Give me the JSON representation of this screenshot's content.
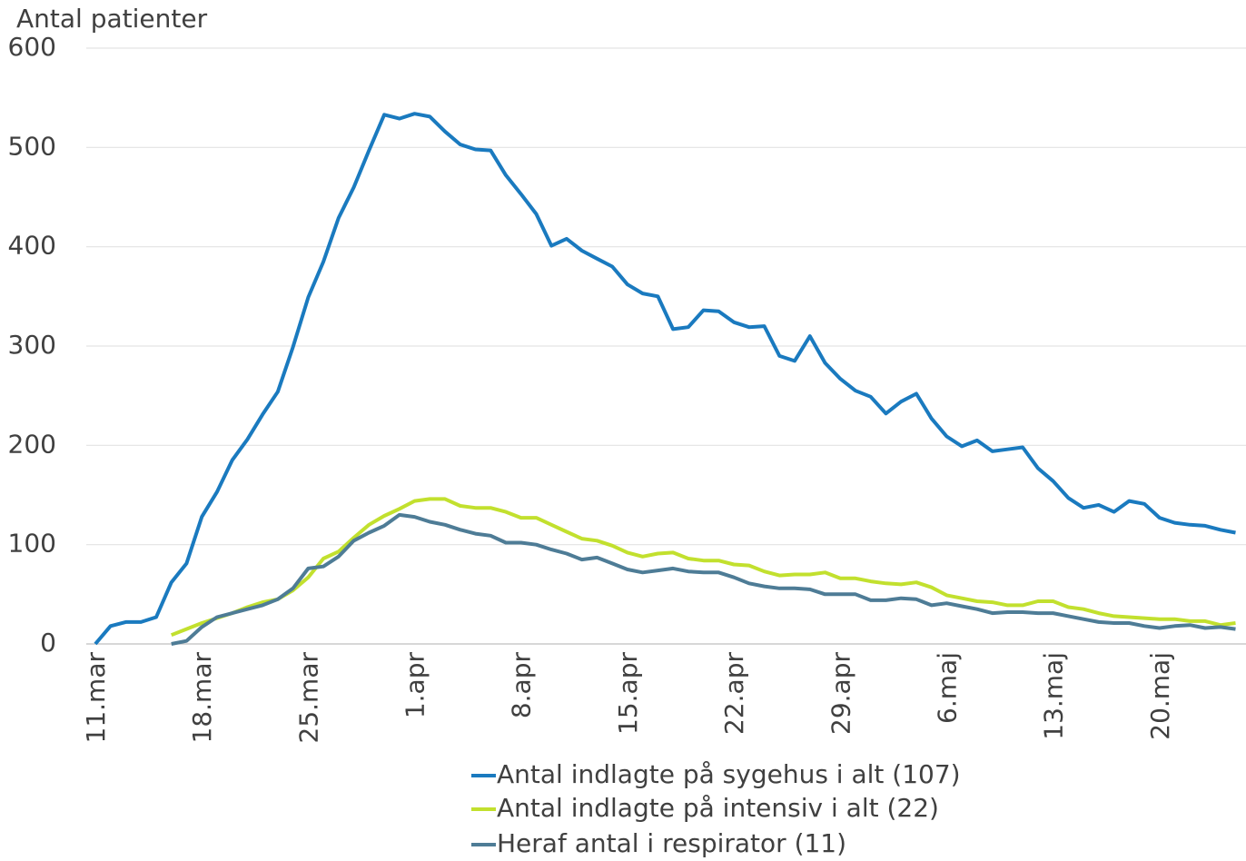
{
  "chart_data": {
    "type": "line",
    "y_label": "Antal patienter",
    "categories": [
      "11.mar",
      null,
      null,
      null,
      null,
      null,
      null,
      "18.mar",
      null,
      null,
      null,
      null,
      null,
      null,
      "25.mar",
      null,
      null,
      null,
      null,
      null,
      null,
      "1.apr",
      null,
      null,
      null,
      null,
      null,
      null,
      "8.apr",
      null,
      null,
      null,
      null,
      null,
      null,
      "15.apr",
      null,
      null,
      null,
      null,
      null,
      null,
      "22.apr",
      null,
      null,
      null,
      null,
      null,
      null,
      "29.apr",
      null,
      null,
      null,
      null,
      null,
      null,
      "6.maj",
      null,
      null,
      null,
      null,
      null,
      null,
      "13.maj",
      null,
      null,
      null,
      null,
      null,
      null,
      "20.maj",
      null,
      null,
      null,
      null,
      null
    ],
    "series": [
      {
        "name": "Antal indlagte på sygehus i alt (107)",
        "color": "#1a7abf",
        "values": [
          0,
          18,
          22,
          22,
          27,
          62,
          81,
          128,
          153,
          185,
          206,
          231,
          254,
          299,
          349,
          385,
          429,
          460,
          497,
          533,
          529,
          534,
          531,
          516,
          503,
          498,
          497,
          472,
          453,
          433,
          401,
          408,
          396,
          388,
          380,
          362,
          353,
          350,
          317,
          319,
          336,
          335,
          324,
          319,
          320,
          290,
          285,
          310,
          283,
          267,
          255,
          249,
          232,
          244,
          252,
          227,
          209,
          199,
          205,
          194,
          196,
          198,
          177,
          164,
          147,
          137,
          140,
          133,
          144,
          141,
          127,
          122,
          120,
          119,
          115,
          112
        ]
      },
      {
        "name": "Antal indlagte på intensiv i alt (22)",
        "color": "#c2e02e",
        "values": [
          null,
          null,
          null,
          null,
          null,
          9,
          15,
          21,
          26,
          31,
          37,
          42,
          45,
          54,
          67,
          86,
          93,
          107,
          120,
          129,
          136,
          144,
          146,
          146,
          139,
          137,
          137,
          133,
          127,
          127,
          120,
          113,
          106,
          104,
          99,
          92,
          88,
          91,
          92,
          86,
          84,
          84,
          80,
          79,
          73,
          69,
          70,
          70,
          72,
          66,
          66,
          63,
          61,
          60,
          62,
          57,
          49,
          46,
          43,
          42,
          39,
          39,
          43,
          43,
          37,
          35,
          31,
          28,
          27,
          26,
          25,
          25,
          23,
          23,
          19,
          21
        ]
      },
      {
        "name": "Heraf antal i respirator (11)",
        "color": "#4e7c96",
        "values": [
          null,
          null,
          null,
          null,
          null,
          0,
          3,
          17,
          27,
          31,
          35,
          39,
          45,
          56,
          76,
          78,
          88,
          104,
          112,
          119,
          130,
          128,
          123,
          120,
          115,
          111,
          109,
          102,
          102,
          100,
          95,
          91,
          85,
          87,
          81,
          75,
          72,
          74,
          76,
          73,
          72,
          72,
          67,
          61,
          58,
          56,
          56,
          55,
          50,
          50,
          50,
          44,
          44,
          46,
          45,
          39,
          41,
          38,
          35,
          31,
          32,
          32,
          31,
          31,
          28,
          25,
          22,
          21,
          21,
          18,
          16,
          18,
          19,
          16,
          17,
          15
        ]
      }
    ],
    "ylim": [
      0,
      600
    ],
    "yticks": [
      0,
      100,
      200,
      300,
      400,
      500,
      600
    ],
    "grid": true,
    "legend": "bottom"
  }
}
